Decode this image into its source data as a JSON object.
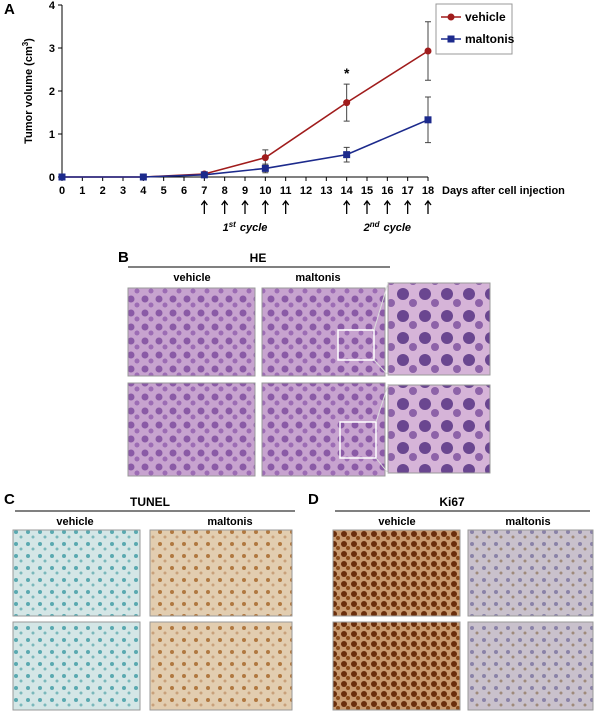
{
  "chart_data": {
    "type": "line",
    "panel_label": "A",
    "y_label": [
      "Tumor volume (cm",
      "3",
      ")"
    ],
    "x_label": "Days after cell injection",
    "x": [
      0,
      4,
      7,
      10,
      14,
      18
    ],
    "series": [
      {
        "name": "vehicle",
        "color": "#a01c1c",
        "marker": "circle",
        "values": [
          0,
          0,
          0.07,
          0.45,
          1.73,
          2.93
        ],
        "errors": [
          0,
          0,
          0.03,
          0.18,
          0.43,
          0.68
        ]
      },
      {
        "name": "maltonis",
        "color": "#1c2a8c",
        "marker": "square",
        "values": [
          0,
          0,
          0.05,
          0.2,
          0.52,
          1.33
        ],
        "errors": [
          0,
          0,
          0.02,
          0.1,
          0.17,
          0.53
        ]
      }
    ],
    "xlim": [
      0,
      18
    ],
    "xticks": [
      0,
      1,
      2,
      3,
      4,
      5,
      6,
      7,
      8,
      9,
      10,
      11,
      12,
      13,
      14,
      15,
      16,
      17,
      18
    ],
    "ylim": [
      0,
      4
    ],
    "yticks": [
      0,
      1,
      2,
      3,
      4
    ],
    "legend": "upper right",
    "annotations": [
      {
        "text": "*",
        "x": 14
      }
    ],
    "cycles": [
      {
        "number": "1",
        "suffix": "st",
        "word": "cycle",
        "days": [
          7,
          8,
          9,
          10,
          11
        ]
      },
      {
        "number": "2",
        "suffix": "nd",
        "word": "cycle",
        "days": [
          14,
          15,
          16,
          17,
          18
        ]
      }
    ]
  },
  "panels": [
    {
      "label": "B",
      "title": "HE",
      "columns": [
        "vehicle",
        "maltonis"
      ]
    },
    {
      "label": "C",
      "title": "TUNEL",
      "columns": [
        "vehicle",
        "maltonis"
      ]
    },
    {
      "label": "D",
      "title": "Ki67",
      "columns": [
        "vehicle",
        "maltonis"
      ]
    }
  ]
}
